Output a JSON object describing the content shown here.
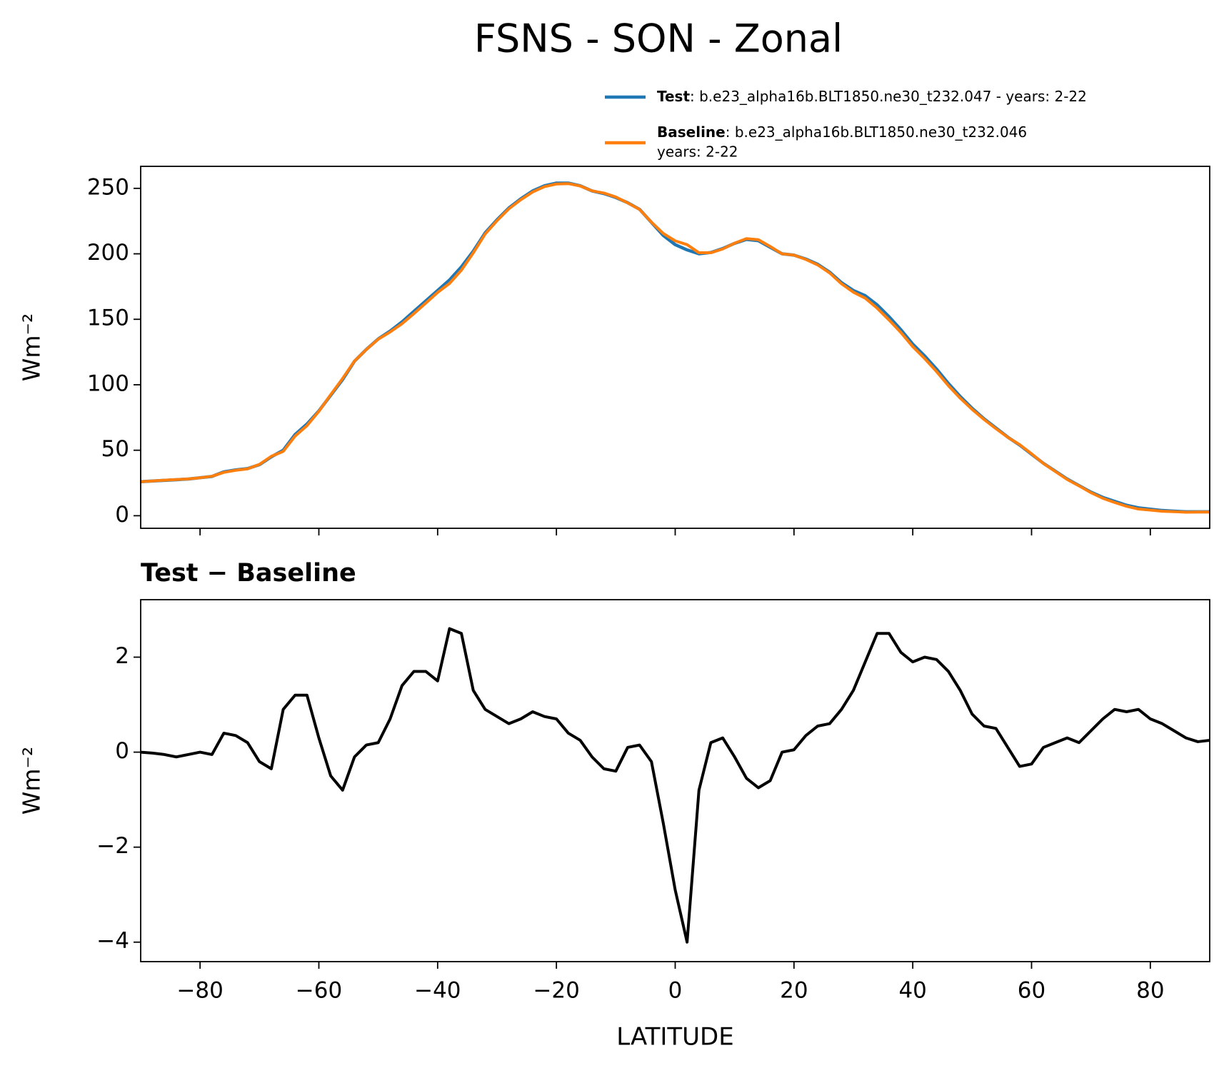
{
  "title": "FSNS - SON - Zonal",
  "chart_data": [
    {
      "type": "line",
      "ylabel": "Wm⁻²",
      "x": [
        -90,
        -88,
        -86,
        -84,
        -82,
        -80,
        -78,
        -76,
        -74,
        -72,
        -70,
        -68,
        -66,
        -64,
        -62,
        -60,
        -58,
        -56,
        -54,
        -52,
        -50,
        -48,
        -46,
        -44,
        -42,
        -40,
        -38,
        -36,
        -34,
        -32,
        -30,
        -28,
        -26,
        -24,
        -22,
        -20,
        -18,
        -16,
        -14,
        -12,
        -10,
        -8,
        -6,
        -4,
        -2,
        0,
        2,
        4,
        6,
        8,
        10,
        12,
        14,
        16,
        18,
        20,
        22,
        24,
        26,
        28,
        30,
        32,
        34,
        36,
        38,
        40,
        42,
        44,
        46,
        48,
        50,
        52,
        54,
        56,
        58,
        60,
        62,
        64,
        66,
        68,
        70,
        72,
        74,
        76,
        78,
        80,
        82,
        84,
        86,
        88,
        90
      ],
      "series": [
        {
          "name": "Test",
          "description": [
            ": b.e23_alpha16b.BLT1850.ne30_t232.047 - years: 2-22"
          ],
          "color": "#1f77b4",
          "values": [
            26,
            26.5,
            27,
            27.5,
            28,
            29,
            30,
            33.5,
            35,
            36,
            39,
            45,
            50,
            62,
            70,
            80,
            92,
            104,
            118,
            127,
            135,
            141,
            148,
            156,
            164,
            172,
            180,
            190,
            202,
            216,
            226,
            235,
            242,
            248,
            252,
            254,
            254,
            252,
            248,
            246,
            243,
            239,
            234,
            224,
            214,
            207,
            203,
            200,
            201,
            204,
            208,
            211,
            210,
            205,
            200,
            199,
            196,
            192,
            186,
            178,
            172,
            168,
            161,
            152,
            142,
            131,
            122,
            112,
            101,
            91,
            82,
            74,
            67,
            60,
            54,
            47,
            40,
            34,
            28,
            23,
            18,
            14,
            11,
            8,
            6,
            5,
            4,
            3.5,
            3,
            3,
            3
          ]
        },
        {
          "name": "Baseline",
          "description": [
            ": b.e23_alpha16b.BLT1850.ne30_t232.046",
            "years: 2-22"
          ],
          "color": "#ff7f0e",
          "values": [
            26,
            26.5,
            27.1,
            27.6,
            28.1,
            29,
            30.1,
            33.1,
            34.7,
            35.8,
            39.2,
            45.4,
            49.1,
            60.8,
            68.8,
            79.7,
            92.5,
            104.8,
            118.1,
            126.9,
            134.8,
            140.3,
            146.6,
            154.3,
            162.3,
            170.5,
            177.4,
            187.5,
            200.7,
            215.1,
            225.3,
            234.4,
            241.3,
            247.2,
            251.3,
            253.3,
            253.6,
            251.8,
            248.1,
            246.4,
            243.4,
            238.9,
            233.9,
            224.2,
            215.5,
            209.9,
            207,
            200.8,
            200.8,
            203.7,
            208.1,
            211.6,
            210.8,
            205.6,
            200,
            199,
            195.7,
            191.5,
            185.4,
            177.1,
            170.7,
            166.1,
            158.5,
            149.5,
            139.9,
            129.1,
            120,
            110.1,
            99.3,
            89.7,
            81.2,
            73.5,
            66.5,
            59.9,
            54.3,
            47.3,
            39.9,
            33.8,
            27.7,
            22.8,
            17.6,
            13.3,
            10.1,
            7.2,
            5.1,
            4.3,
            3.4,
            3.1,
            2.7,
            2.8,
            2.8
          ]
        }
      ],
      "xlim": [
        -90,
        90
      ],
      "ylim": [
        -9.6,
        266.8
      ],
      "xticks": [
        -80,
        -60,
        -40,
        -20,
        0,
        20,
        40,
        60,
        80
      ],
      "yticks": [
        0,
        50,
        100,
        150,
        200,
        250
      ],
      "grid": false
    },
    {
      "type": "line",
      "title": "Test − Baseline",
      "xlabel": "LATITUDE",
      "ylabel": "Wm⁻²",
      "x": [
        -90,
        -88,
        -86,
        -84,
        -82,
        -80,
        -78,
        -76,
        -74,
        -72,
        -70,
        -68,
        -66,
        -64,
        -62,
        -60,
        -58,
        -56,
        -54,
        -52,
        -50,
        -48,
        -46,
        -44,
        -42,
        -40,
        -38,
        -36,
        -34,
        -32,
        -30,
        -28,
        -26,
        -24,
        -22,
        -20,
        -18,
        -16,
        -14,
        -12,
        -10,
        -8,
        -6,
        -4,
        -2,
        0,
        2,
        4,
        6,
        8,
        10,
        12,
        14,
        16,
        18,
        20,
        22,
        24,
        26,
        28,
        30,
        32,
        34,
        36,
        38,
        40,
        42,
        44,
        46,
        48,
        50,
        52,
        54,
        56,
        58,
        60,
        62,
        64,
        66,
        68,
        70,
        72,
        74,
        76,
        78,
        80,
        82,
        84,
        86,
        88,
        90
      ],
      "series": [
        {
          "color": "#000000",
          "values": [
            0,
            -0.02,
            -0.05,
            -0.1,
            -0.05,
            0,
            -0.05,
            0.4,
            0.35,
            0.2,
            -0.2,
            -0.35,
            0.9,
            1.2,
            1.2,
            0.3,
            -0.5,
            -0.8,
            -0.1,
            0.15,
            0.2,
            0.7,
            1.4,
            1.7,
            1.7,
            1.5,
            2.6,
            2.5,
            1.3,
            0.9,
            0.75,
            0.6,
            0.7,
            0.85,
            0.75,
            0.7,
            0.4,
            0.25,
            -0.1,
            -0.35,
            -0.4,
            0.1,
            0.15,
            -0.2,
            -1.5,
            -2.9,
            -4.0,
            -0.8,
            0.2,
            0.3,
            -0.1,
            -0.55,
            -0.75,
            -0.6,
            0,
            0.05,
            0.35,
            0.55,
            0.6,
            0.9,
            1.3,
            1.9,
            2.5,
            2.5,
            2.1,
            1.9,
            2.0,
            1.95,
            1.7,
            1.3,
            0.8,
            0.55,
            0.5,
            0.1,
            -0.3,
            -0.25,
            0.1,
            0.2,
            0.3,
            0.2,
            0.45,
            0.7,
            0.9,
            0.85,
            0.9,
            0.7,
            0.6,
            0.45,
            0.3,
            0.22,
            0.25
          ]
        }
      ],
      "xlim": [
        -90,
        90
      ],
      "ylim": [
        -4.41,
        3.21
      ],
      "xticks": [
        {
          "value": -80,
          "label": "−80"
        },
        {
          "value": -60,
          "label": "−60"
        },
        {
          "value": -40,
          "label": "−40"
        },
        {
          "value": -20,
          "label": "−20"
        },
        0,
        20,
        40,
        60,
        80
      ],
      "yticks": [
        {
          "value": -4,
          "label": "−4"
        },
        {
          "value": -2,
          "label": "−2"
        },
        0,
        2
      ],
      "grid": false
    }
  ]
}
